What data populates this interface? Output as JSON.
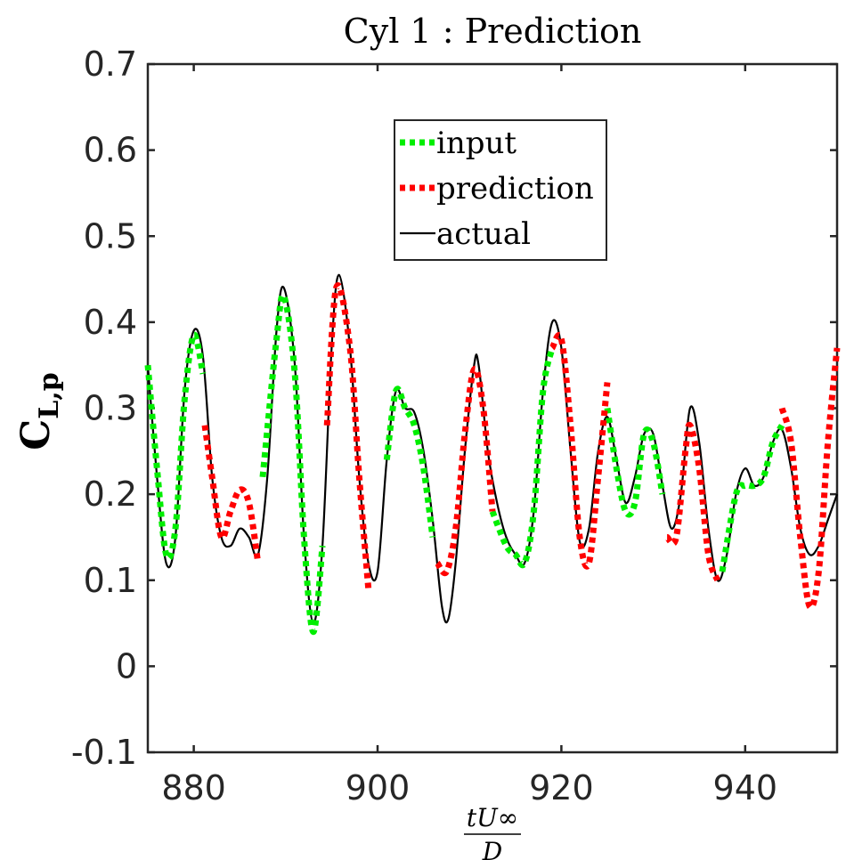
{
  "chart_data": {
    "type": "line",
    "title": "Cyl 1 : Prediction",
    "xlabel": {
      "numerator": "tU∞",
      "denominator": "D"
    },
    "ylabel": {
      "main": "C",
      "subscript": "L,p"
    },
    "xlim": [
      875,
      950
    ],
    "ylim": [
      -0.1,
      0.7
    ],
    "xticks": [
      880,
      900,
      920,
      940
    ],
    "yticks": [
      -0.1,
      0,
      0.1,
      0.2,
      0.3,
      0.4,
      0.5,
      0.6,
      0.7
    ],
    "xtick_labels": [
      "880",
      "900",
      "920",
      "940"
    ],
    "ytick_labels": [
      "-0.1",
      "0",
      "0.1",
      "0.2",
      "0.3",
      "0.4",
      "0.5",
      "0.6",
      "0.7"
    ],
    "legend": {
      "position": "top-center",
      "entries": [
        {
          "key": "input",
          "label": "input",
          "color": "#00ee00",
          "style": "dotted"
        },
        {
          "key": "prediction",
          "label": "prediction",
          "color": "#ff0000",
          "style": "dotted"
        },
        {
          "key": "actual",
          "label": "actual",
          "color": "#000000",
          "style": "solid"
        }
      ]
    },
    "series": [
      {
        "name": "actual",
        "color": "#000000",
        "style": "solid",
        "points": [
          [
            875,
            0.35
          ],
          [
            876,
            0.22
          ],
          [
            877,
            0.12
          ],
          [
            878,
            0.15
          ],
          [
            879,
            0.32
          ],
          [
            880,
            0.39
          ],
          [
            881,
            0.36
          ],
          [
            882,
            0.22
          ],
          [
            883,
            0.15
          ],
          [
            884,
            0.14
          ],
          [
            885,
            0.16
          ],
          [
            886,
            0.15
          ],
          [
            887,
            0.13
          ],
          [
            888,
            0.22
          ],
          [
            889,
            0.39
          ],
          [
            889.8,
            0.44
          ],
          [
            891,
            0.35
          ],
          [
            892,
            0.15
          ],
          [
            893,
            0.05
          ],
          [
            894,
            0.14
          ],
          [
            895,
            0.37
          ],
          [
            895.8,
            0.455
          ],
          [
            897,
            0.37
          ],
          [
            898,
            0.22
          ],
          [
            899,
            0.12
          ],
          [
            900,
            0.11
          ],
          [
            901,
            0.24
          ],
          [
            902,
            0.32
          ],
          [
            903,
            0.3
          ],
          [
            904,
            0.295
          ],
          [
            905,
            0.25
          ],
          [
            906,
            0.17
          ],
          [
            907,
            0.07
          ],
          [
            907.7,
            0.055
          ],
          [
            908.5,
            0.12
          ],
          [
            909.5,
            0.25
          ],
          [
            910.5,
            0.35
          ],
          [
            911,
            0.35
          ],
          [
            912,
            0.25
          ],
          [
            913,
            0.19
          ],
          [
            914,
            0.15
          ],
          [
            915,
            0.13
          ],
          [
            916,
            0.12
          ],
          [
            917,
            0.18
          ],
          [
            918,
            0.32
          ],
          [
            919,
            0.4
          ],
          [
            920,
            0.37
          ],
          [
            921,
            0.25
          ],
          [
            922,
            0.145
          ],
          [
            923,
            0.16
          ],
          [
            924,
            0.25
          ],
          [
            925,
            0.29
          ],
          [
            926,
            0.24
          ],
          [
            927,
            0.19
          ],
          [
            928,
            0.22
          ],
          [
            929,
            0.27
          ],
          [
            930,
            0.27
          ],
          [
            931,
            0.21
          ],
          [
            932,
            0.16
          ],
          [
            933,
            0.2
          ],
          [
            934,
            0.3
          ],
          [
            935,
            0.26
          ],
          [
            936,
            0.16
          ],
          [
            937,
            0.1
          ],
          [
            938,
            0.13
          ],
          [
            939,
            0.2
          ],
          [
            940,
            0.23
          ],
          [
            941,
            0.21
          ],
          [
            942,
            0.22
          ],
          [
            943,
            0.26
          ],
          [
            944,
            0.275
          ],
          [
            945,
            0.23
          ],
          [
            946,
            0.16
          ],
          [
            947,
            0.13
          ],
          [
            948,
            0.14
          ],
          [
            949,
            0.17
          ],
          [
            950,
            0.2
          ]
        ]
      },
      {
        "name": "input",
        "color": "#00ee00",
        "style": "dotted",
        "segments": [
          [
            [
              875,
              0.35
            ],
            [
              876,
              0.23
            ],
            [
              877,
              0.13
            ],
            [
              878,
              0.16
            ],
            [
              879,
              0.31
            ],
            [
              880,
              0.385
            ],
            [
              881,
              0.34
            ]
          ],
          [
            [
              887.5,
              0.22
            ],
            [
              889,
              0.38
            ],
            [
              889.8,
              0.43
            ],
            [
              891,
              0.34
            ],
            [
              892,
              0.15
            ],
            [
              893,
              0.04
            ],
            [
              894,
              0.14
            ]
          ],
          [
            [
              901,
              0.24
            ],
            [
              902,
              0.32
            ],
            [
              903,
              0.3
            ],
            [
              904,
              0.28
            ],
            [
              905,
              0.23
            ],
            [
              906,
              0.15
            ]
          ],
          [
            [
              912.5,
              0.18
            ],
            [
              914,
              0.14
            ],
            [
              915,
              0.13
            ],
            [
              916,
              0.12
            ],
            [
              917,
              0.18
            ],
            [
              918,
              0.32
            ],
            [
              919,
              0.37
            ]
          ],
          [
            [
              925,
              0.3
            ],
            [
              926,
              0.23
            ],
            [
              927,
              0.18
            ],
            [
              928,
              0.19
            ],
            [
              929,
              0.27
            ],
            [
              930,
              0.26
            ],
            [
              931,
              0.2
            ]
          ],
          [
            [
              937.5,
              0.11
            ],
            [
              939,
              0.2
            ],
            [
              940,
              0.21
            ],
            [
              941,
              0.21
            ],
            [
              942,
              0.22
            ],
            [
              943,
              0.26
            ],
            [
              944,
              0.28
            ]
          ]
        ]
      },
      {
        "name": "prediction",
        "color": "#ff0000",
        "style": "dotted",
        "segments": [
          [
            [
              881.2,
              0.28
            ],
            [
              882,
              0.22
            ],
            [
              883,
              0.15
            ],
            [
              884,
              0.18
            ],
            [
              885,
              0.205
            ],
            [
              886,
              0.19
            ],
            [
              887,
              0.12
            ]
          ],
          [
            [
              894.5,
              0.28
            ],
            [
              895.5,
              0.44
            ],
            [
              897,
              0.37
            ],
            [
              898,
              0.22
            ],
            [
              899,
              0.09
            ]
          ],
          [
            [
              906.5,
              0.12
            ],
            [
              907.5,
              0.11
            ],
            [
              908.5,
              0.16
            ],
            [
              909.5,
              0.27
            ],
            [
              910.5,
              0.345
            ],
            [
              911.5,
              0.3
            ],
            [
              912.5,
              0.18
            ]
          ],
          [
            [
              919,
              0.37
            ],
            [
              920,
              0.38
            ],
            [
              921,
              0.28
            ],
            [
              922,
              0.15
            ],
            [
              923,
              0.12
            ],
            [
              924,
              0.22
            ],
            [
              925,
              0.33
            ]
          ],
          [
            [
              931.5,
              0.15
            ],
            [
              932.5,
              0.15
            ],
            [
              933.5,
              0.25
            ],
            [
              934,
              0.28
            ],
            [
              935,
              0.23
            ],
            [
              936,
              0.13
            ],
            [
              937,
              0.1
            ]
          ],
          [
            [
              944,
              0.3
            ],
            [
              945,
              0.26
            ],
            [
              946,
              0.15
            ],
            [
              947,
              0.07
            ],
            [
              948,
              0.11
            ],
            [
              949,
              0.26
            ],
            [
              950,
              0.37
            ]
          ]
        ]
      }
    ]
  }
}
